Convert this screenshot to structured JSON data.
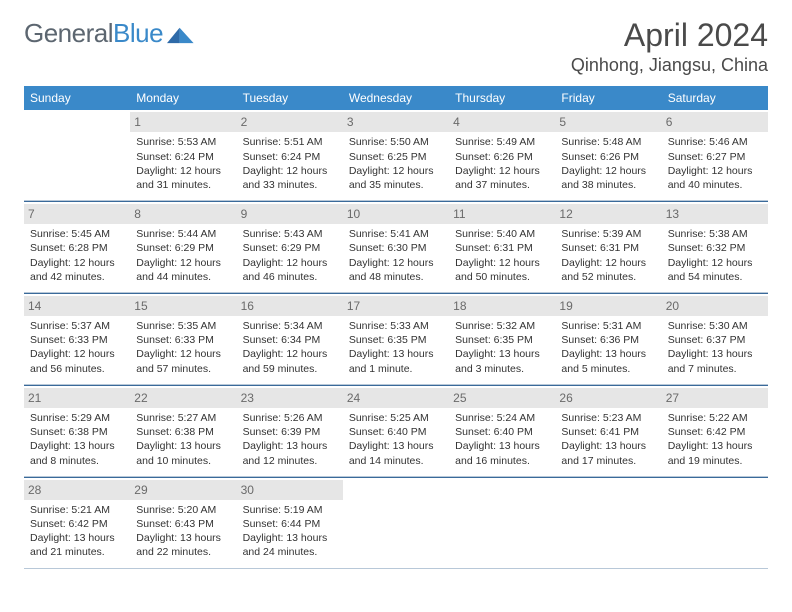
{
  "brand": {
    "part1": "General",
    "part2": "Blue"
  },
  "title": "April 2024",
  "location": "Qinhong, Jiangsu, China",
  "colors": {
    "header_bg": "#3a89c9",
    "header_text": "#ffffff",
    "daynum_bg": "#e6e6e6",
    "daynum_text": "#6a6a6a",
    "week_border_top": "#3a6a9a",
    "week_border_bottom": "#b8c8d8",
    "body_text": "#333333",
    "title_text": "#4a4a4a"
  },
  "daysOfWeek": [
    "Sunday",
    "Monday",
    "Tuesday",
    "Wednesday",
    "Thursday",
    "Friday",
    "Saturday"
  ],
  "weeks": [
    [
      {
        "day": "",
        "lines": []
      },
      {
        "day": "1",
        "lines": [
          "Sunrise: 5:53 AM",
          "Sunset: 6:24 PM",
          "Daylight: 12 hours and 31 minutes."
        ]
      },
      {
        "day": "2",
        "lines": [
          "Sunrise: 5:51 AM",
          "Sunset: 6:24 PM",
          "Daylight: 12 hours and 33 minutes."
        ]
      },
      {
        "day": "3",
        "lines": [
          "Sunrise: 5:50 AM",
          "Sunset: 6:25 PM",
          "Daylight: 12 hours and 35 minutes."
        ]
      },
      {
        "day": "4",
        "lines": [
          "Sunrise: 5:49 AM",
          "Sunset: 6:26 PM",
          "Daylight: 12 hours and 37 minutes."
        ]
      },
      {
        "day": "5",
        "lines": [
          "Sunrise: 5:48 AM",
          "Sunset: 6:26 PM",
          "Daylight: 12 hours and 38 minutes."
        ]
      },
      {
        "day": "6",
        "lines": [
          "Sunrise: 5:46 AM",
          "Sunset: 6:27 PM",
          "Daylight: 12 hours and 40 minutes."
        ]
      }
    ],
    [
      {
        "day": "7",
        "lines": [
          "Sunrise: 5:45 AM",
          "Sunset: 6:28 PM",
          "Daylight: 12 hours and 42 minutes."
        ]
      },
      {
        "day": "8",
        "lines": [
          "Sunrise: 5:44 AM",
          "Sunset: 6:29 PM",
          "Daylight: 12 hours and 44 minutes."
        ]
      },
      {
        "day": "9",
        "lines": [
          "Sunrise: 5:43 AM",
          "Sunset: 6:29 PM",
          "Daylight: 12 hours and 46 minutes."
        ]
      },
      {
        "day": "10",
        "lines": [
          "Sunrise: 5:41 AM",
          "Sunset: 6:30 PM",
          "Daylight: 12 hours and 48 minutes."
        ]
      },
      {
        "day": "11",
        "lines": [
          "Sunrise: 5:40 AM",
          "Sunset: 6:31 PM",
          "Daylight: 12 hours and 50 minutes."
        ]
      },
      {
        "day": "12",
        "lines": [
          "Sunrise: 5:39 AM",
          "Sunset: 6:31 PM",
          "Daylight: 12 hours and 52 minutes."
        ]
      },
      {
        "day": "13",
        "lines": [
          "Sunrise: 5:38 AM",
          "Sunset: 6:32 PM",
          "Daylight: 12 hours and 54 minutes."
        ]
      }
    ],
    [
      {
        "day": "14",
        "lines": [
          "Sunrise: 5:37 AM",
          "Sunset: 6:33 PM",
          "Daylight: 12 hours and 56 minutes."
        ]
      },
      {
        "day": "15",
        "lines": [
          "Sunrise: 5:35 AM",
          "Sunset: 6:33 PM",
          "Daylight: 12 hours and 57 minutes."
        ]
      },
      {
        "day": "16",
        "lines": [
          "Sunrise: 5:34 AM",
          "Sunset: 6:34 PM",
          "Daylight: 12 hours and 59 minutes."
        ]
      },
      {
        "day": "17",
        "lines": [
          "Sunrise: 5:33 AM",
          "Sunset: 6:35 PM",
          "Daylight: 13 hours and 1 minute."
        ]
      },
      {
        "day": "18",
        "lines": [
          "Sunrise: 5:32 AM",
          "Sunset: 6:35 PM",
          "Daylight: 13 hours and 3 minutes."
        ]
      },
      {
        "day": "19",
        "lines": [
          "Sunrise: 5:31 AM",
          "Sunset: 6:36 PM",
          "Daylight: 13 hours and 5 minutes."
        ]
      },
      {
        "day": "20",
        "lines": [
          "Sunrise: 5:30 AM",
          "Sunset: 6:37 PM",
          "Daylight: 13 hours and 7 minutes."
        ]
      }
    ],
    [
      {
        "day": "21",
        "lines": [
          "Sunrise: 5:29 AM",
          "Sunset: 6:38 PM",
          "Daylight: 13 hours and 8 minutes."
        ]
      },
      {
        "day": "22",
        "lines": [
          "Sunrise: 5:27 AM",
          "Sunset: 6:38 PM",
          "Daylight: 13 hours and 10 minutes."
        ]
      },
      {
        "day": "23",
        "lines": [
          "Sunrise: 5:26 AM",
          "Sunset: 6:39 PM",
          "Daylight: 13 hours and 12 minutes."
        ]
      },
      {
        "day": "24",
        "lines": [
          "Sunrise: 5:25 AM",
          "Sunset: 6:40 PM",
          "Daylight: 13 hours and 14 minutes."
        ]
      },
      {
        "day": "25",
        "lines": [
          "Sunrise: 5:24 AM",
          "Sunset: 6:40 PM",
          "Daylight: 13 hours and 16 minutes."
        ]
      },
      {
        "day": "26",
        "lines": [
          "Sunrise: 5:23 AM",
          "Sunset: 6:41 PM",
          "Daylight: 13 hours and 17 minutes."
        ]
      },
      {
        "day": "27",
        "lines": [
          "Sunrise: 5:22 AM",
          "Sunset: 6:42 PM",
          "Daylight: 13 hours and 19 minutes."
        ]
      }
    ],
    [
      {
        "day": "28",
        "lines": [
          "Sunrise: 5:21 AM",
          "Sunset: 6:42 PM",
          "Daylight: 13 hours and 21 minutes."
        ]
      },
      {
        "day": "29",
        "lines": [
          "Sunrise: 5:20 AM",
          "Sunset: 6:43 PM",
          "Daylight: 13 hours and 22 minutes."
        ]
      },
      {
        "day": "30",
        "lines": [
          "Sunrise: 5:19 AM",
          "Sunset: 6:44 PM",
          "Daylight: 13 hours and 24 minutes."
        ]
      },
      {
        "day": "",
        "lines": []
      },
      {
        "day": "",
        "lines": []
      },
      {
        "day": "",
        "lines": []
      },
      {
        "day": "",
        "lines": []
      }
    ]
  ]
}
